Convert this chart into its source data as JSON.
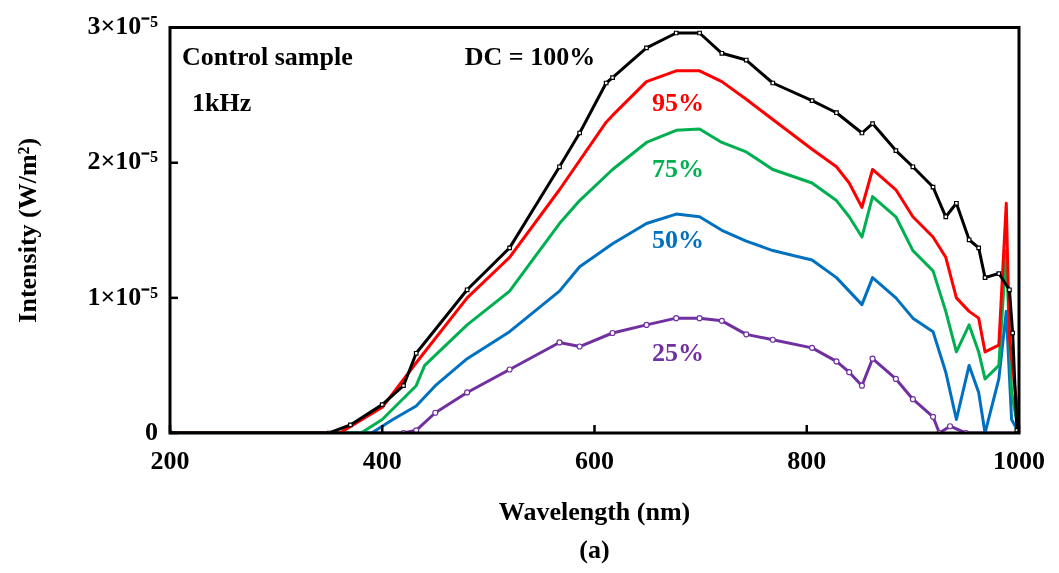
{
  "chart_data": {
    "type": "line",
    "xlabel": "Wavelength (nm)",
    "ylabel": "Intensity (W/m²)",
    "annotations": [
      "Control sample",
      "1kHz",
      "(a)"
    ],
    "xlim": [
      200,
      1000
    ],
    "xticks": [
      200,
      400,
      600,
      800,
      1000
    ],
    "ylim": [
      0,
      3e-05
    ],
    "yticks": [
      0,
      {
        "value": 1e-05,
        "label": "1×10⁻⁵"
      },
      {
        "value": 2e-05,
        "label": "2×10⁻⁵"
      },
      {
        "value": 3e-05,
        "label": "3×10⁻⁵"
      }
    ],
    "grid": false,
    "legend": false,
    "line_style": "solid",
    "series": [
      {
        "name": "DC = 100%",
        "color": "#000000",
        "marker": "square",
        "x": [
          200,
          350,
          370,
          400,
          420,
          432,
          480,
          520,
          567,
          586,
          611,
          617,
          649,
          677,
          699,
          720,
          743,
          768,
          805,
          828,
          852,
          862,
          884,
          900,
          919,
          931,
          941,
          953,
          962,
          968,
          981,
          991,
          994,
          998,
          1000
        ],
        "values": [
          0,
          0,
          6e-07,
          2.1e-06,
          3.5e-06,
          5.9e-06,
          1.06e-05,
          1.37e-05,
          1.97e-05,
          2.22e-05,
          2.59e-05,
          2.63e-05,
          2.85e-05,
          2.96e-05,
          2.96e-05,
          2.81e-05,
          2.76e-05,
          2.59e-05,
          2.46e-05,
          2.37e-05,
          2.22e-05,
          2.29e-05,
          2.09e-05,
          1.97e-05,
          1.82e-05,
          1.6e-05,
          1.7e-05,
          1.43e-05,
          1.37e-05,
          1.15e-05,
          1.18e-05,
          1.06e-05,
          7.4e-06,
          2e-07,
          0
        ]
      },
      {
        "name": "95%",
        "color": "#ff0000",
        "x": [
          200,
          360,
          400,
          432,
          480,
          520,
          567,
          611,
          617,
          649,
          677,
          699,
          720,
          743,
          768,
          805,
          828,
          840,
          852,
          862,
          884,
          900,
          919,
          931,
          941,
          953,
          962,
          968,
          981,
          988,
          991,
          998,
          1000
        ],
        "values": [
          0,
          0,
          1.9e-06,
          5.2e-06,
          1e-05,
          1.3e-05,
          1.8e-05,
          2.3e-05,
          2.35e-05,
          2.6e-05,
          2.68e-05,
          2.68e-05,
          2.6e-05,
          2.47e-05,
          2.32e-05,
          2.1e-05,
          1.97e-05,
          1.85e-05,
          1.67e-05,
          1.95e-05,
          1.8e-05,
          1.6e-05,
          1.45e-05,
          1.3e-05,
          1e-05,
          9e-06,
          8.5e-06,
          6e-06,
          6.5e-06,
          1.7e-05,
          7e-06,
          2e-06,
          0
        ]
      },
      {
        "name": "75%",
        "color": "#00b050",
        "x": [
          200,
          380,
          400,
          432,
          440,
          480,
          520,
          567,
          586,
          617,
          649,
          677,
          699,
          720,
          743,
          768,
          805,
          828,
          840,
          852,
          862,
          884,
          900,
          919,
          931,
          941,
          953,
          962,
          968,
          981,
          988,
          993,
          1000
        ],
        "values": [
          0,
          0,
          1e-06,
          3.5e-06,
          5e-06,
          8e-06,
          1.05e-05,
          1.55e-05,
          1.72e-05,
          1.95e-05,
          2.15e-05,
          2.24e-05,
          2.25e-05,
          2.15e-05,
          2.08e-05,
          1.95e-05,
          1.85e-05,
          1.72e-05,
          1.6e-05,
          1.45e-05,
          1.75e-05,
          1.6e-05,
          1.35e-05,
          1.2e-05,
          9e-06,
          6e-06,
          8e-06,
          6e-06,
          4e-06,
          5e-06,
          1.35e-05,
          3e-06,
          0
        ]
      },
      {
        "name": "50%",
        "color": "#0070c0",
        "x": [
          200,
          390,
          410,
          432,
          450,
          480,
          520,
          567,
          586,
          617,
          649,
          677,
          699,
          720,
          743,
          768,
          805,
          828,
          840,
          852,
          862,
          884,
          900,
          919,
          931,
          941,
          953,
          962,
          968,
          981,
          988,
          993,
          1000
        ],
        "values": [
          0,
          0,
          1e-06,
          2e-06,
          3.5e-06,
          5.5e-06,
          7.5e-06,
          1.05e-05,
          1.23e-05,
          1.4e-05,
          1.55e-05,
          1.62e-05,
          1.6e-05,
          1.5e-05,
          1.42e-05,
          1.35e-05,
          1.28e-05,
          1.15e-05,
          1.05e-05,
          9.5e-06,
          1.15e-05,
          1e-05,
          8.5e-06,
          7.5e-06,
          4.5e-06,
          1e-06,
          5e-06,
          3e-06,
          0,
          4e-06,
          9e-06,
          1e-06,
          0
        ]
      },
      {
        "name": "25%",
        "color": "#7030a0",
        "marker": "circle",
        "x": [
          200,
          420,
          432,
          450,
          480,
          520,
          567,
          586,
          617,
          649,
          677,
          699,
          720,
          743,
          768,
          805,
          828,
          840,
          852,
          862,
          884,
          900,
          919,
          925,
          935,
          950,
          1000
        ],
        "values": [
          0,
          0,
          2e-07,
          1.5e-06,
          3e-06,
          4.7e-06,
          6.7e-06,
          6.4e-06,
          7.4e-06,
          8e-06,
          8.5e-06,
          8.5e-06,
          8.3e-06,
          7.3e-06,
          6.9e-06,
          6.3e-06,
          5.3e-06,
          4.5e-06,
          3.5e-06,
          5.5e-06,
          4e-06,
          2.5e-06,
          1.2e-06,
          0,
          5e-07,
          0,
          0
        ]
      }
    ]
  }
}
